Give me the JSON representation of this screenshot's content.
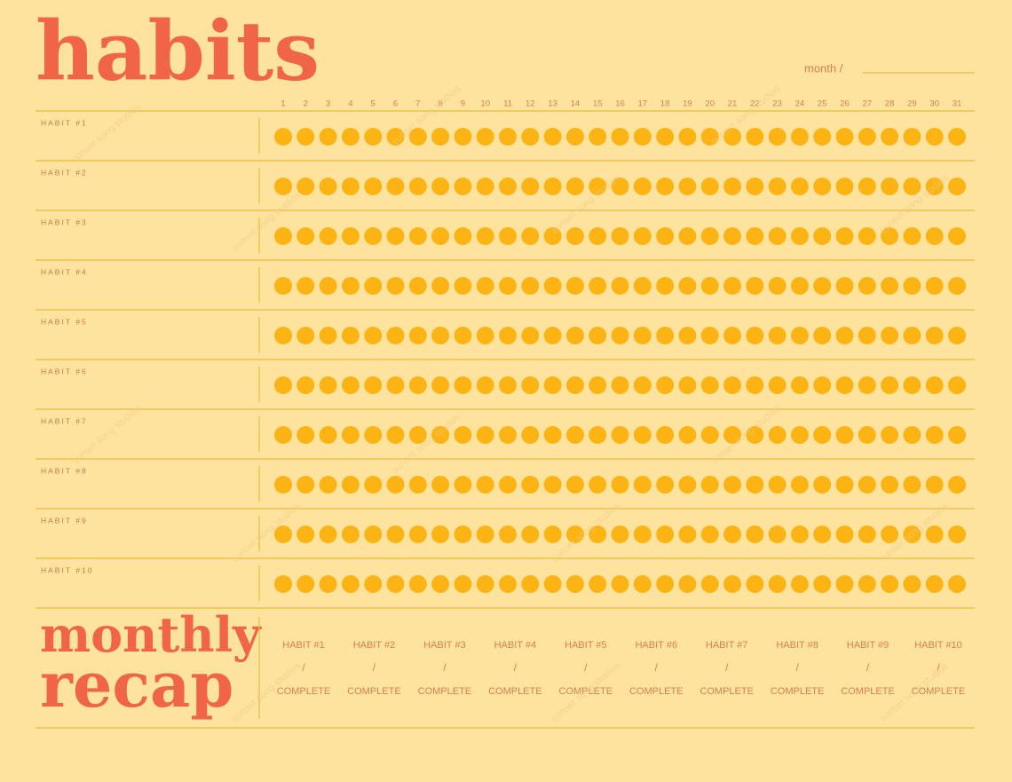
{
  "header": {
    "title": "habits",
    "month_label": "month /"
  },
  "days": [
    1,
    2,
    3,
    4,
    5,
    6,
    7,
    8,
    9,
    10,
    11,
    12,
    13,
    14,
    15,
    16,
    17,
    18,
    19,
    20,
    21,
    22,
    23,
    24,
    25,
    26,
    27,
    28,
    29,
    30,
    31
  ],
  "habits": [
    "HABIT #1",
    "HABIT #2",
    "HABIT #3",
    "HABIT #4",
    "HABIT #5",
    "HABIT #6",
    "HABIT #7",
    "HABIT #8",
    "HABIT #9",
    "HABIT #10"
  ],
  "recap": {
    "title_line1": "monthly",
    "title_line2": "recap",
    "separator": "/",
    "status": "COMPLETE",
    "habits": [
      "HABIT #1",
      "HABIT #2",
      "HABIT #3",
      "HABIT #4",
      "HABIT #5",
      "HABIT #6",
      "HABIT #7",
      "HABIT #8",
      "HABIT #9",
      "HABIT #10"
    ]
  },
  "watermark": "sunset song studios"
}
